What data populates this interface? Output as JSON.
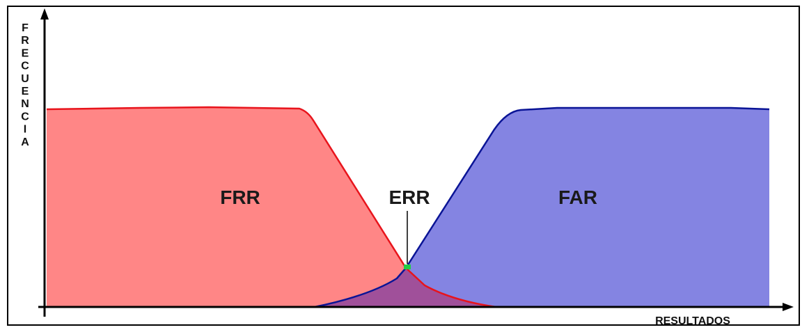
{
  "labels": {
    "frr": "FRR",
    "err": "ERR",
    "far": "FAR",
    "x_axis": "RESULTADOS",
    "y_axis": "FRECUENCIA"
  },
  "colors": {
    "frr_fill": "#ff8686",
    "frr_line": "#e8141c",
    "far_fill": "#8484e2",
    "far_line": "#0a1496",
    "overlap_fill": "#a0509a",
    "err_marker": "#22cc44",
    "axis": "#000000"
  }
}
